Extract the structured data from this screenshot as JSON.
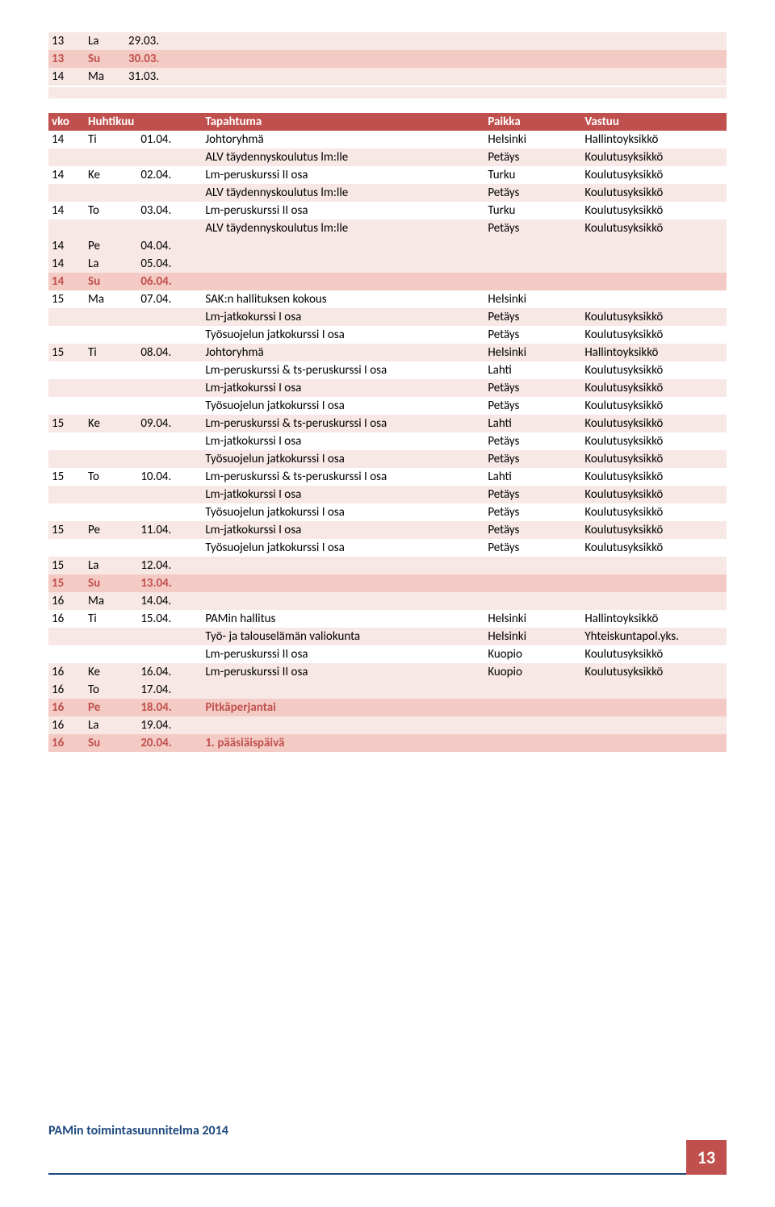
{
  "topRows": [
    {
      "cls": "row-pale",
      "wk": "13",
      "day": "La",
      "date": "29.03.",
      "event": "",
      "place": "",
      "resp": ""
    },
    {
      "cls": "row-pink",
      "wk": "13",
      "day": "Su",
      "date": "30.03.",
      "event": "",
      "place": "",
      "resp": "",
      "red": true,
      "bold": true
    },
    {
      "cls": "row-pale",
      "wk": "14",
      "day": "Ma",
      "date": "31.03.",
      "event": "",
      "place": "",
      "resp": ""
    }
  ],
  "header": {
    "wk": "vko",
    "day": "Huhtikuu",
    "date": "",
    "event": "Tapahtuma",
    "place": "Paikka",
    "resp": "Vastuu"
  },
  "rows": [
    {
      "cls": "row-white",
      "wk": "14",
      "day": "Ti",
      "date": "01.04.",
      "event": "Johtoryhmä",
      "place": "Helsinki",
      "resp": "Hallintoyksikkö"
    },
    {
      "cls": "row-pale",
      "wk": "",
      "day": "",
      "date": "",
      "event": "ALV täydennyskoulutus lm:lle",
      "place": "Petäys",
      "resp": "Koulutusyksikkö"
    },
    {
      "cls": "row-white",
      "wk": "14",
      "day": "Ke",
      "date": "02.04.",
      "event": "Lm-peruskurssi  II osa",
      "place": "Turku",
      "resp": "Koulutusyksikkö"
    },
    {
      "cls": "row-pale",
      "wk": "",
      "day": "",
      "date": "",
      "event": "ALV täydennyskoulutus lm:lle",
      "place": "Petäys",
      "resp": "Koulutusyksikkö"
    },
    {
      "cls": "row-white",
      "wk": "14",
      "day": "To",
      "date": "03.04.",
      "event": "Lm-peruskurssi  II osa",
      "place": "Turku",
      "resp": "Koulutusyksikkö"
    },
    {
      "cls": "row-pale",
      "wk": "",
      "day": "",
      "date": "",
      "event": "ALV täydennyskoulutus lm:lle",
      "place": "Petäys",
      "resp": "Koulutusyksikkö"
    },
    {
      "cls": "row-pale",
      "wk": "14",
      "day": "Pe",
      "date": "04.04.",
      "event": "",
      "place": "",
      "resp": ""
    },
    {
      "cls": "row-pale",
      "wk": "14",
      "day": "La",
      "date": "05.04.",
      "event": "",
      "place": "",
      "resp": ""
    },
    {
      "cls": "row-pink",
      "wk": "14",
      "day": "Su",
      "date": "06.04.",
      "event": "",
      "place": "",
      "resp": "",
      "red": true,
      "bold": true
    },
    {
      "cls": "row-white",
      "wk": "15",
      "day": "Ma",
      "date": "07.04.",
      "event": "SAK:n hallituksen kokous",
      "place": "Helsinki",
      "resp": ""
    },
    {
      "cls": "row-pale",
      "wk": "",
      "day": "",
      "date": "",
      "event": "Lm-jatkokurssi I osa",
      "place": "Petäys",
      "resp": "Koulutusyksikkö"
    },
    {
      "cls": "row-white",
      "wk": "",
      "day": "",
      "date": "",
      "event": "Työsuojelun jatkokurssi I osa",
      "place": "Petäys",
      "resp": "Koulutusyksikkö"
    },
    {
      "cls": "row-pale",
      "wk": "15",
      "day": "Ti",
      "date": "08.04.",
      "event": "Johtoryhmä",
      "place": "Helsinki",
      "resp": "Hallintoyksikkö"
    },
    {
      "cls": "row-white",
      "wk": "",
      "day": "",
      "date": "",
      "event": "Lm-peruskurssi & ts-peruskurssi I osa",
      "place": "Lahti",
      "resp": "Koulutusyksikkö"
    },
    {
      "cls": "row-pale",
      "wk": "",
      "day": "",
      "date": "",
      "event": "Lm-jatkokurssi I osa",
      "place": "Petäys",
      "resp": "Koulutusyksikkö"
    },
    {
      "cls": "row-white",
      "wk": "",
      "day": "",
      "date": "",
      "event": "Työsuojelun jatkokurssi I osa",
      "place": "Petäys",
      "resp": "Koulutusyksikkö"
    },
    {
      "cls": "row-pale",
      "wk": "15",
      "day": "Ke",
      "date": "09.04.",
      "event": "Lm-peruskurssi & ts-peruskurssi I osa",
      "place": "Lahti",
      "resp": "Koulutusyksikkö"
    },
    {
      "cls": "row-white",
      "wk": "",
      "day": "",
      "date": "",
      "event": "Lm-jatkokurssi I osa",
      "place": "Petäys",
      "resp": "Koulutusyksikkö"
    },
    {
      "cls": "row-pale",
      "wk": "",
      "day": "",
      "date": "",
      "event": "Työsuojelun jatkokurssi I osa",
      "place": "Petäys",
      "resp": "Koulutusyksikkö"
    },
    {
      "cls": "row-white",
      "wk": "15",
      "day": "To",
      "date": "10.04.",
      "event": "Lm-peruskurssi & ts-peruskurssi I osa",
      "place": "Lahti",
      "resp": "Koulutusyksikkö"
    },
    {
      "cls": "row-pale",
      "wk": "",
      "day": "",
      "date": "",
      "event": "Lm-jatkokurssi I osa",
      "place": "Petäys",
      "resp": "Koulutusyksikkö"
    },
    {
      "cls": "row-white",
      "wk": "",
      "day": "",
      "date": "",
      "event": "Työsuojelun jatkokurssi I osa",
      "place": "Petäys",
      "resp": "Koulutusyksikkö"
    },
    {
      "cls": "row-pale",
      "wk": "15",
      "day": "Pe",
      "date": "11.04.",
      "event": "Lm-jatkokurssi I osa",
      "place": "Petäys",
      "resp": "Koulutusyksikkö"
    },
    {
      "cls": "row-white",
      "wk": "",
      "day": "",
      "date": "",
      "event": "Työsuojelun jatkokurssi I osa",
      "place": "Petäys",
      "resp": "Koulutusyksikkö"
    },
    {
      "cls": "row-pale",
      "wk": "15",
      "day": "La",
      "date": "12.04.",
      "event": "",
      "place": "",
      "resp": ""
    },
    {
      "cls": "row-pink",
      "wk": "15",
      "day": "Su",
      "date": "13.04.",
      "event": "",
      "place": "",
      "resp": "",
      "red": true,
      "bold": true
    },
    {
      "cls": "row-pale",
      "wk": "16",
      "day": "Ma",
      "date": "14.04.",
      "event": "",
      "place": "",
      "resp": ""
    },
    {
      "cls": "row-white",
      "wk": "16",
      "day": "Ti",
      "date": "15.04.",
      "event": "PAMin hallitus",
      "place": "Helsinki",
      "resp": "Hallintoyksikkö"
    },
    {
      "cls": "row-pale",
      "wk": "",
      "day": "",
      "date": "",
      "event": "Työ- ja talouselämän valiokunta",
      "place": "Helsinki",
      "resp": "Yhteiskuntapol.yks."
    },
    {
      "cls": "row-white",
      "wk": "",
      "day": "",
      "date": "",
      "event": "Lm-peruskurssi  II osa",
      "place": "Kuopio",
      "resp": "Koulutusyksikkö"
    },
    {
      "cls": "row-pale",
      "wk": "16",
      "day": "Ke",
      "date": "16.04.",
      "event": "Lm-peruskurssi  II osa",
      "place": "Kuopio",
      "resp": "Koulutusyksikkö"
    },
    {
      "cls": "row-pale",
      "wk": "16",
      "day": "To",
      "date": "17.04.",
      "event": "",
      "place": "",
      "resp": ""
    },
    {
      "cls": "row-pink",
      "wk": "16",
      "day": "Pe",
      "date": "18.04.",
      "event": "Pitkäperjantai",
      "place": "",
      "resp": "",
      "red": true,
      "bold": true
    },
    {
      "cls": "row-pale",
      "wk": "16",
      "day": "La",
      "date": "19.04.",
      "event": "",
      "place": "",
      "resp": ""
    },
    {
      "cls": "row-pink",
      "wk": "16",
      "day": "Su",
      "date": "20.04.",
      "event": "1. pääsiäispäivä",
      "place": "",
      "resp": "",
      "red": true,
      "bold": true
    }
  ],
  "footer": {
    "text": "PAMin toimintasuunnitelma 2014",
    "page": "13"
  }
}
